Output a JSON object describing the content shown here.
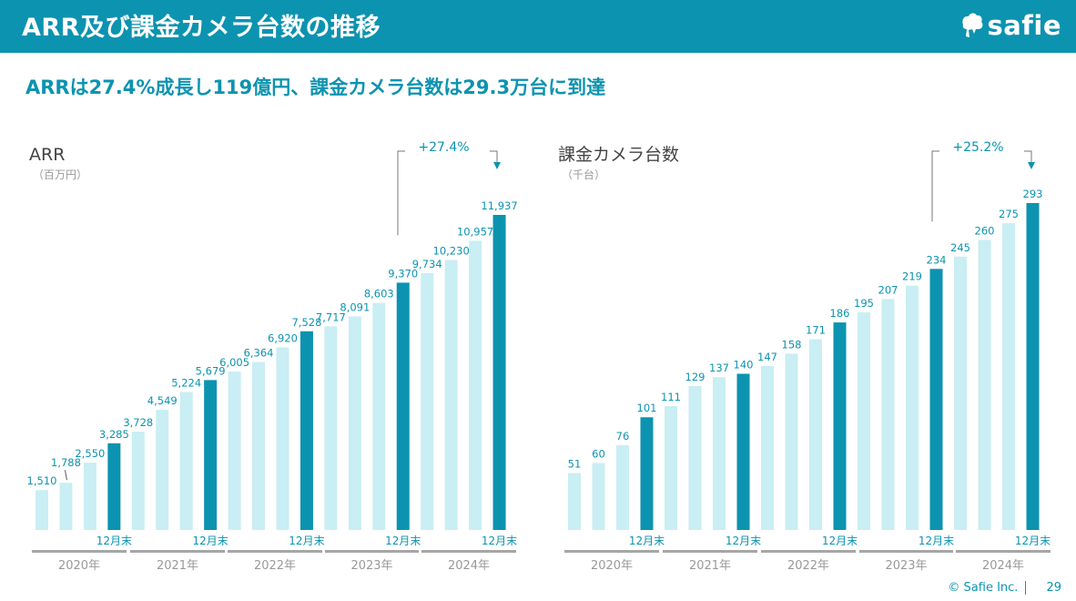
{
  "header": {
    "title": "ARR及び課金カメラ台数の推移",
    "logo_text": "safie"
  },
  "subtitle": "ARRは27.4%成長し119億円、課金カメラ台数は29.3万台に到達",
  "footer": {
    "copyright": "© Safie Inc.",
    "page": "29"
  },
  "colors": {
    "primary": "#0c93b0",
    "bar_light": "#c9eef4",
    "bar_dark": "#0c93b0",
    "axis_gray": "#a6a6a6"
  },
  "chart_data": [
    {
      "type": "bar",
      "title": "ARR",
      "unit": "（百万円）",
      "values": [
        1510,
        1788,
        2550,
        3285,
        3728,
        4549,
        5224,
        5679,
        6005,
        6364,
        6920,
        7528,
        7717,
        8091,
        8603,
        9370,
        9734,
        10230,
        10957,
        11937
      ],
      "value_labels": [
        "1,510",
        "1,788",
        "2,550",
        "3,285",
        "3,728",
        "4,549",
        "5,224",
        "5,679",
        "6,005",
        "6,364",
        "6,920",
        "7,528",
        "7,717",
        "8,091",
        "8,603",
        "9,370",
        "9,734",
        "10,230",
        "10,957",
        "11,937"
      ],
      "highlight_indices": [
        3,
        7,
        11,
        15,
        19
      ],
      "highlight_label": "12月末",
      "year_labels": [
        "2020年",
        "2021年",
        "2022年",
        "2023年",
        "2024年"
      ],
      "growth_label": "+27.4%",
      "growth_from_index": 15,
      "growth_to_index": 19
    },
    {
      "type": "bar",
      "title": "課金カメラ台数",
      "unit": "（千台）",
      "values": [
        51,
        60,
        76,
        101,
        111,
        129,
        137,
        140,
        147,
        158,
        171,
        186,
        195,
        207,
        219,
        234,
        245,
        260,
        275,
        293
      ],
      "value_labels": [
        "51",
        "60",
        "76",
        "101",
        "111",
        "129",
        "137",
        "140",
        "147",
        "158",
        "171",
        "186",
        "195",
        "207",
        "219",
        "234",
        "245",
        "260",
        "275",
        "293"
      ],
      "highlight_indices": [
        3,
        7,
        11,
        15,
        19
      ],
      "highlight_label": "12月末",
      "year_labels": [
        "2020年",
        "2021年",
        "2022年",
        "2023年",
        "2024年"
      ],
      "growth_label": "+25.2%",
      "growth_from_index": 15,
      "growth_to_index": 19
    }
  ]
}
